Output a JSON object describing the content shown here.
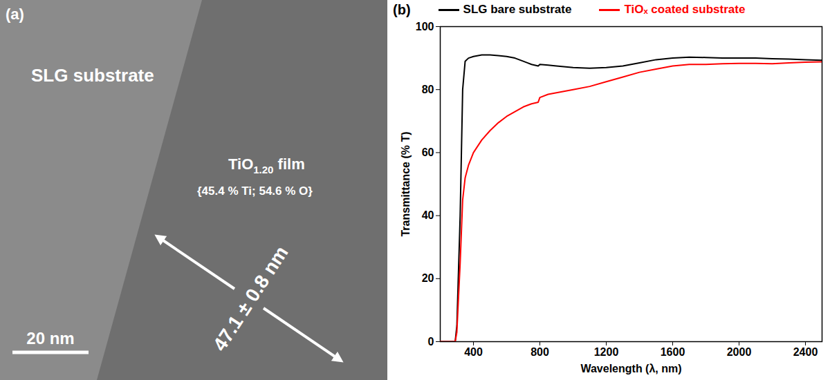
{
  "micrograph": {
    "panel_label": "(a)",
    "substrate_label": "SLG substrate",
    "film_label": {
      "formula": "TiO",
      "subscript": "1.20",
      "suffix": " film"
    },
    "composition": "{45.4 % Ti; 54.6 % O}",
    "thickness": "47.1 ± 0.8 nm",
    "scale_bar": "20 nm"
  },
  "chart_data": {
    "type": "line",
    "panel_label": "(b)",
    "x_label": "Wavelength (λ, nm)",
    "y_label": "Transmittance (% T)",
    "x": [
      200,
      250,
      290,
      300,
      320,
      335,
      350,
      370,
      400,
      450,
      500,
      550,
      600,
      650,
      700,
      750,
      790,
      800,
      850,
      900,
      1000,
      1100,
      1200,
      1300,
      1400,
      1500,
      1600,
      1700,
      1800,
      1900,
      2000,
      2100,
      2200,
      2300,
      2400,
      2500
    ],
    "series": [
      {
        "name": "SLG bare substrate",
        "color": "#000000",
        "values": [
          0,
          0,
          0,
          5,
          40,
          80,
          89,
          90,
          90.5,
          91,
          91,
          90.8,
          90.5,
          90,
          89,
          88,
          87.5,
          88,
          87.8,
          87.5,
          87,
          86.8,
          87,
          87.5,
          88.5,
          89.5,
          90,
          90.3,
          90.2,
          90,
          90,
          90,
          89.8,
          89.7,
          89.5,
          89.3
        ]
      },
      {
        "name": "TiOₓ coated substrate",
        "color": "#ff0000",
        "values": [
          0,
          0,
          0,
          3,
          25,
          45,
          52,
          56,
          60,
          64,
          67,
          69.5,
          71.5,
          73,
          74.5,
          75.5,
          76,
          77.5,
          78.5,
          79,
          80,
          81,
          82.5,
          84,
          85.5,
          86.5,
          87.5,
          88,
          88,
          88.2,
          88.3,
          88.3,
          88.2,
          88.5,
          88.7,
          88.8
        ]
      }
    ],
    "xlim": [
      200,
      2500
    ],
    "xticks": [
      400,
      800,
      1200,
      1600,
      2000,
      2400
    ],
    "ylim": [
      0,
      100
    ],
    "yticks": [
      0,
      20,
      40,
      60,
      80,
      100
    ],
    "legend": "top",
    "grid": false
  }
}
